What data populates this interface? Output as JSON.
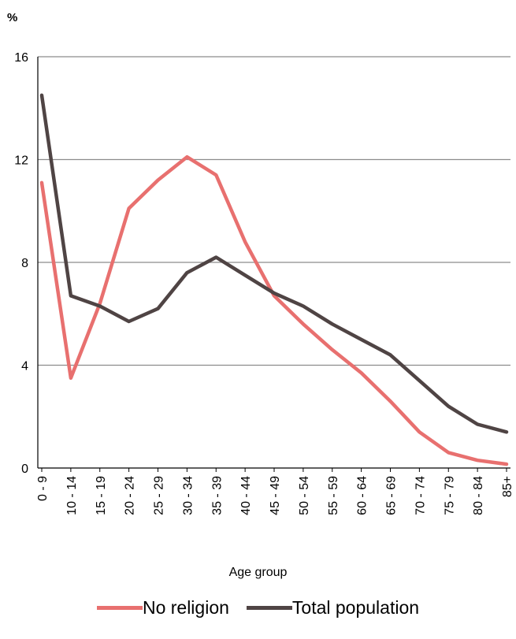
{
  "chart_data": {
    "type": "line",
    "y_unit_label": "%",
    "xlabel": "Age group",
    "ylim": [
      0,
      16
    ],
    "yticks": [
      0,
      4,
      8,
      12,
      16
    ],
    "grid": true,
    "legend_position": "bottom",
    "categories": [
      "0 - 9",
      "10 - 14",
      "15 - 19",
      "20 - 24",
      "25 - 29",
      "30 - 34",
      "35 - 39",
      "40 - 44",
      "45 - 49",
      "50 - 54",
      "55 - 59",
      "60 - 64",
      "65 - 69",
      "70 - 74",
      "75 - 79",
      "80 - 84",
      "85+"
    ],
    "series": [
      {
        "name": "No religion",
        "color": "#e8706f",
        "values": [
          11.1,
          3.5,
          6.4,
          10.1,
          11.2,
          12.1,
          11.4,
          8.8,
          6.7,
          5.6,
          4.6,
          3.7,
          2.6,
          1.4,
          0.6,
          0.3,
          0.15
        ]
      },
      {
        "name": "Total population",
        "color": "#4f4444",
        "values": [
          14.5,
          6.7,
          6.3,
          5.7,
          6.2,
          7.6,
          8.2,
          7.5,
          6.8,
          6.3,
          5.6,
          5.0,
          4.4,
          3.4,
          2.4,
          1.7,
          1.4
        ]
      }
    ]
  }
}
